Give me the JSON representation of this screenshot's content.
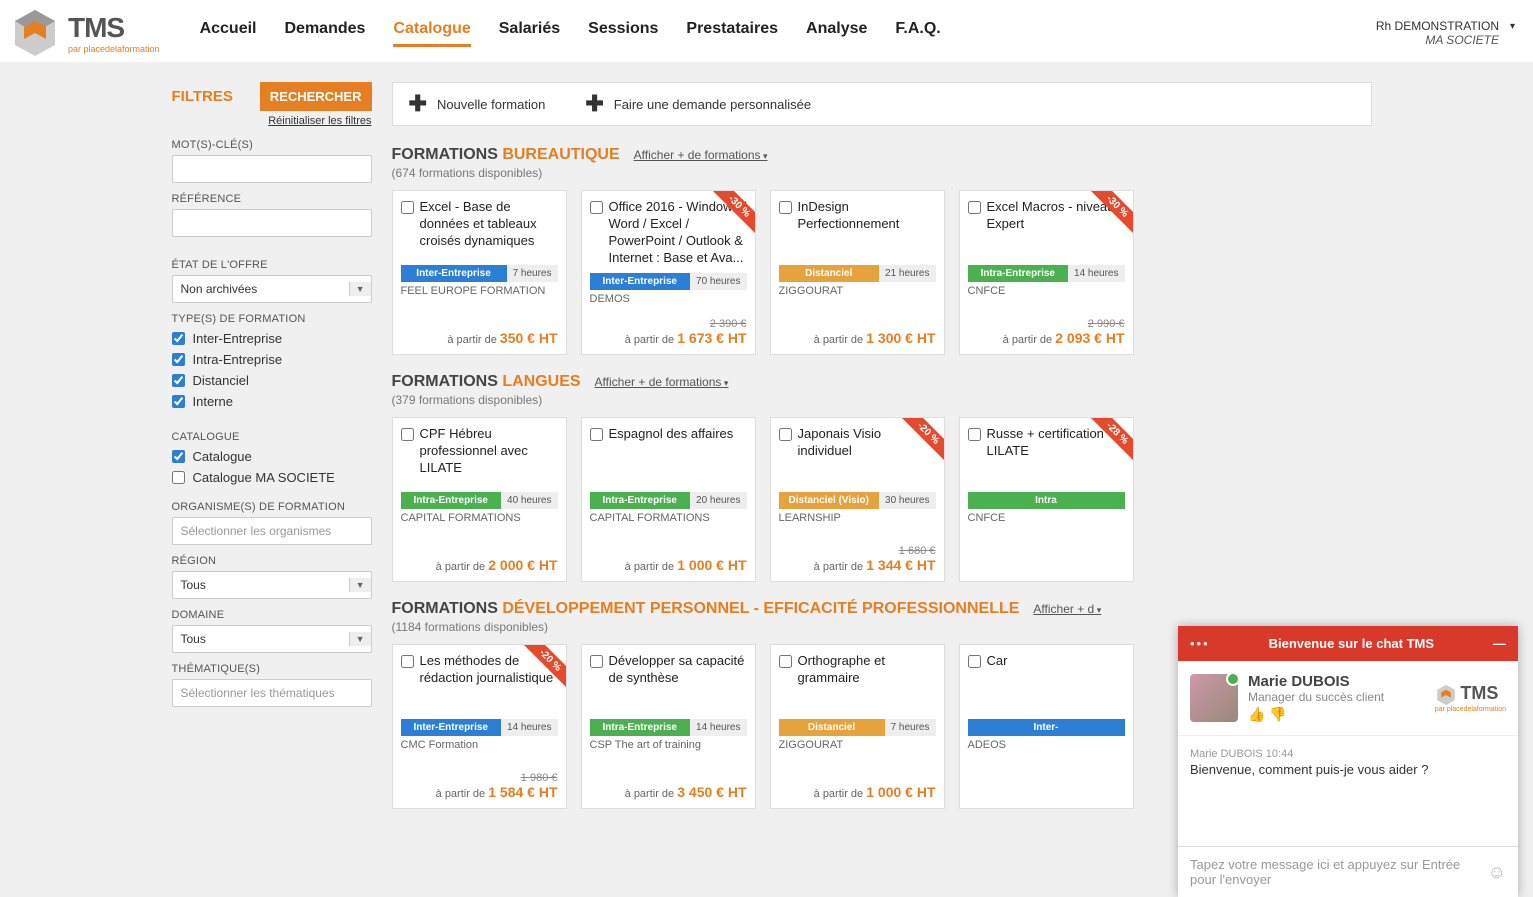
{
  "brand": {
    "name": "TMS",
    "sub": "par placedelaformation"
  },
  "nav": [
    "Accueil",
    "Demandes",
    "Catalogue",
    "Salariés",
    "Sessions",
    "Prestataires",
    "Analyse",
    "F.A.Q."
  ],
  "nav_active": 2,
  "user": {
    "name": "Rh DEMONSTRATION",
    "company": "MA SOCIETE"
  },
  "filters": {
    "title": "FILTRES",
    "search_btn": "RECHERCHER",
    "reset": "Réinitialiser les filtres",
    "labels": {
      "keywords": "MOT(S)-CLÉ(S)",
      "reference": "RÉFÉRENCE",
      "etat": "ÉTAT DE L'OFFRE",
      "types": "TYPE(S) DE FORMATION",
      "catalogue": "CATALOGUE",
      "organisme": "ORGANISME(S) DE FORMATION",
      "region": "RÉGION",
      "domaine": "DOMAINE",
      "thematique": "THÉMATIQUE(S)"
    },
    "etat_value": "Non archivées",
    "types_opts": [
      "Inter-Entreprise",
      "Intra-Entreprise",
      "Distanciel",
      "Interne"
    ],
    "catalogue_opts": [
      "Catalogue",
      "Catalogue MA SOCIETE"
    ],
    "catalogue_checked": [
      true,
      false
    ],
    "organisme_ph": "Sélectionner les organismes",
    "region_value": "Tous",
    "domaine_value": "Tous",
    "thematique_ph": "Sélectionner les thématiques"
  },
  "toolbar": {
    "new": "Nouvelle formation",
    "custom": "Faire une demande personnalisée"
  },
  "sections": [
    {
      "prefix": "FORMATIONS ",
      "highlight": "BUREAUTIQUE",
      "more": "Afficher + de formations",
      "count": "(674 formations disponibles)",
      "cards": [
        {
          "title": "Excel - Base de données et tableaux croisés dynamiques",
          "mode": "Inter-Entreprise",
          "mode_cls": "inter",
          "hours": "7 heures",
          "provider": "FEEL EUROPE FORMATION",
          "price": "350 € HT"
        },
        {
          "title": "Office 2016 - Windows / Word / Excel / PowerPoint / Outlook & Internet : Base et Ava...",
          "mode": "Inter-Entreprise",
          "mode_cls": "inter",
          "hours": "70 heures",
          "provider": "DEMOS",
          "old": "2 390 €",
          "price": "1 673 € HT",
          "ribbon": "-30 %"
        },
        {
          "title": "InDesign Perfectionnement",
          "mode": "Distanciel",
          "mode_cls": "dist",
          "hours": "21 heures",
          "provider": "ZIGGOURAT",
          "price": "1 300 € HT"
        },
        {
          "title": "Excel Macros - niveau Expert",
          "mode": "Intra-Entreprise",
          "mode_cls": "intra",
          "hours": "14 heures",
          "provider": "CNFCE",
          "old": "2 990 €",
          "price": "2 093 € HT",
          "ribbon": "-30 %"
        }
      ]
    },
    {
      "prefix": "FORMATIONS ",
      "highlight": "LANGUES",
      "more": "Afficher + de formations",
      "count": "(379 formations disponibles)",
      "cards": [
        {
          "title": "CPF Hébreu professionnel avec LILATE",
          "mode": "Intra-Entreprise",
          "mode_cls": "intra",
          "hours": "40 heures",
          "provider": "CAPITAL FORMATIONS",
          "price": "2 000 € HT"
        },
        {
          "title": "Espagnol des affaires",
          "mode": "Intra-Entreprise",
          "mode_cls": "intra",
          "hours": "20 heures",
          "provider": "CAPITAL FORMATIONS",
          "price": "1 000 € HT"
        },
        {
          "title": "Japonais Visio individuel",
          "mode": "Distanciel (Visio)",
          "mode_cls": "dist",
          "hours": "30 heures",
          "provider": "LEARNSHIP",
          "old": "1 680 €",
          "price": "1 344 € HT",
          "ribbon": "-20 %"
        },
        {
          "title": "Russe + certification LILATE",
          "mode": "Intra",
          "mode_cls": "intra",
          "hours": "",
          "provider": "CNFCE",
          "price": "",
          "ribbon": "-28 %"
        }
      ]
    },
    {
      "prefix": "FORMATIONS ",
      "highlight": "DÉVELOPPEMENT PERSONNEL - EFFICACITÉ PROFESSIONNELLE",
      "more": "Afficher + d",
      "count": "(1184 formations disponibles)",
      "cards": [
        {
          "title": "Les méthodes de rédaction journalistique",
          "mode": "Inter-Entreprise",
          "mode_cls": "inter",
          "hours": "14 heures",
          "provider": "CMC Formation",
          "old": "1 980 €",
          "price": "1 584 € HT",
          "ribbon": "-20 %"
        },
        {
          "title": "Développer sa capacité de synthèse",
          "mode": "Intra-Entreprise",
          "mode_cls": "intra",
          "hours": "14 heures",
          "provider": "CSP The art of training",
          "price": "3 450 € HT"
        },
        {
          "title": "Orthographe et grammaire",
          "mode": "Distanciel",
          "mode_cls": "dist",
          "hours": "7 heures",
          "provider": "ZIGGOURAT",
          "price": "1 000 € HT"
        },
        {
          "title": "Car",
          "mode": "Inter-",
          "mode_cls": "inter",
          "hours": "",
          "provider": "ADEOS",
          "price": ""
        }
      ]
    }
  ],
  "price_prefix": "à partir de ",
  "chat": {
    "header": "Bienvenue sur le chat TMS",
    "agent_name": "Marie DUBOIS",
    "agent_role": "Manager du succès client",
    "meta": "Marie DUBOIS 10:44",
    "msg": "Bienvenue, comment puis-je vous aider ?",
    "placeholder": "Tapez votre message ici et appuyez sur Entrée pour l'envoyer"
  }
}
